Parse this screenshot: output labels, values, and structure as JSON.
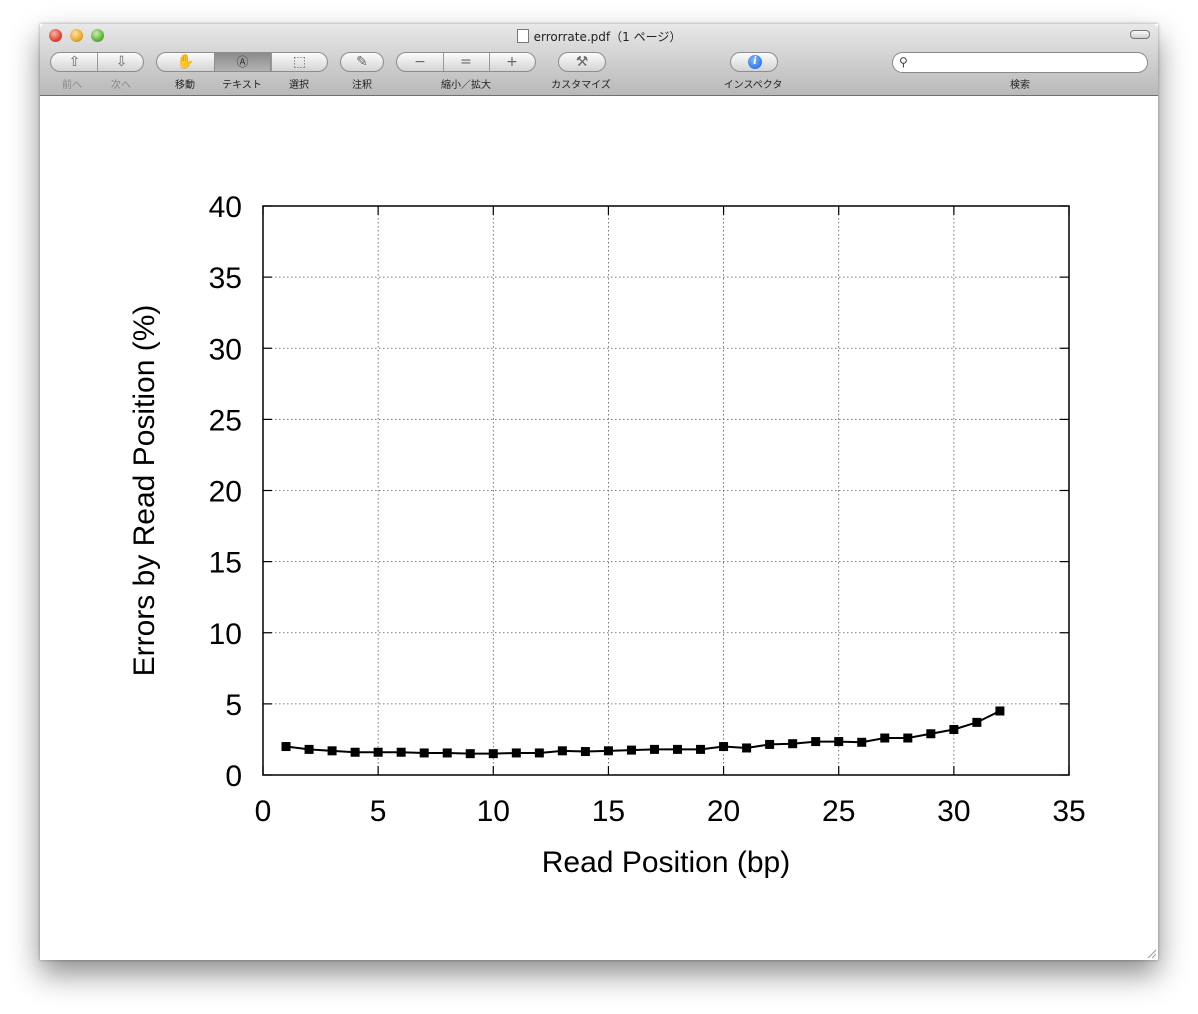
{
  "window": {
    "title": "errorrate.pdf（1 ページ）"
  },
  "toolbar": {
    "back_label": "前へ",
    "forward_label": "次へ",
    "move_label": "移動",
    "text_label": "テキスト",
    "select_label": "選択",
    "annotate_label": "注釈",
    "zoom_label": "縮小／拡大",
    "customize_label": "カスタマイズ",
    "inspector_label": "インスペクタ",
    "search_label": "検索",
    "search_value": ""
  },
  "icons": {
    "back": "up-arrow-icon",
    "forward": "down-arrow-icon",
    "move": "hand-icon",
    "text": "text-select-icon",
    "select": "marquee-select-icon",
    "annotate": "pencil-icon",
    "zoom_out": "minus-icon",
    "actual_size": "equals-icon",
    "zoom_in": "plus-icon",
    "customize": "hammer-icon",
    "inspector": "info-icon",
    "search": "magnifier-icon"
  },
  "chart_data": {
    "type": "line",
    "title": "",
    "xlabel": "Read Position (bp)",
    "ylabel": "Errors by Read Position (%)",
    "xlim": [
      0,
      35
    ],
    "ylim": [
      0,
      40
    ],
    "xticks": [
      0,
      5,
      10,
      15,
      20,
      25,
      30,
      35
    ],
    "yticks": [
      0,
      5,
      10,
      15,
      20,
      25,
      30,
      35,
      40
    ],
    "grid": true,
    "marker": "square",
    "color": "#000000",
    "series": [
      {
        "x": [
          1,
          2,
          3,
          4,
          5,
          6,
          7,
          8,
          9,
          10,
          11,
          12,
          13,
          14,
          15,
          16,
          17,
          18,
          19,
          20,
          21,
          22,
          23,
          24,
          25,
          26,
          27,
          28,
          29,
          30,
          31,
          32
        ],
        "y": [
          2.0,
          1.8,
          1.7,
          1.6,
          1.6,
          1.6,
          1.55,
          1.55,
          1.5,
          1.5,
          1.55,
          1.55,
          1.7,
          1.65,
          1.7,
          1.75,
          1.8,
          1.8,
          1.8,
          2.0,
          1.9,
          2.15,
          2.2,
          2.35,
          2.35,
          2.3,
          2.6,
          2.6,
          2.9,
          3.2,
          3.7,
          4.5
        ]
      }
    ]
  }
}
